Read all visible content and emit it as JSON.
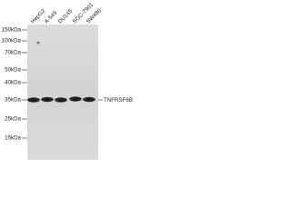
{
  "lanes": [
    "HepG2",
    "A-549",
    "DU145",
    "SGC-7901",
    "SW480"
  ],
  "markers": [
    "150kDa",
    "100kDa",
    "70kDa",
    "50kDa",
    "40kDa",
    "35kDa",
    "25kDa",
    "15kDa"
  ],
  "target": "TNFRSF6B"
}
